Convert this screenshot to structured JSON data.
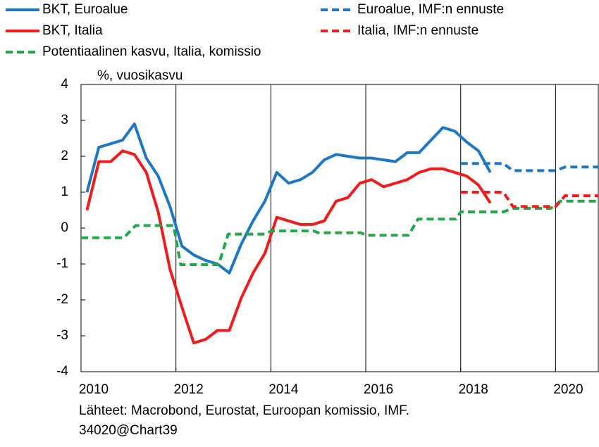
{
  "chart_data": {
    "type": "line",
    "y_label": "%, vuosikasvu",
    "footer": [
      "Lähteet: Macrobond, Eurostat, Euroopan komissio, IMF.",
      "34020@Chart39"
    ],
    "xlim": [
      2010,
      2020.9
    ],
    "xticks": [
      2010,
      2012,
      2014,
      2016,
      2018,
      2020
    ],
    "ylim": [
      -4,
      4
    ],
    "yticks": [
      -4,
      -3,
      -2,
      -1,
      0,
      1,
      2,
      3,
      4
    ],
    "xgrid": [
      2012,
      2014,
      2016,
      2018,
      2020
    ],
    "series": [
      {
        "name": "BKT, Euroalue",
        "color": "#1f77c4",
        "dash": false,
        "x": [
          2010.125,
          2010.375,
          2010.625,
          2010.875,
          2011.125,
          2011.375,
          2011.625,
          2011.875,
          2012.125,
          2012.375,
          2012.625,
          2012.875,
          2013.125,
          2013.375,
          2013.625,
          2013.875,
          2014.125,
          2014.375,
          2014.625,
          2014.875,
          2015.125,
          2015.375,
          2015.625,
          2015.875,
          2016.125,
          2016.375,
          2016.625,
          2016.875,
          2017.125,
          2017.375,
          2017.625,
          2017.875,
          2018.125,
          2018.375,
          2018.625
        ],
        "values": [
          1.0,
          2.25,
          2.35,
          2.45,
          2.9,
          1.95,
          1.45,
          0.6,
          -0.5,
          -0.75,
          -0.9,
          -1.0,
          -1.25,
          -0.45,
          0.2,
          0.75,
          1.55,
          1.25,
          1.35,
          1.55,
          1.9,
          2.05,
          2.0,
          1.95,
          1.95,
          1.9,
          1.85,
          2.1,
          2.1,
          2.45,
          2.8,
          2.7,
          2.4,
          2.15,
          1.55
        ]
      },
      {
        "name": "BKT, Italia",
        "color": "#ee1c1c",
        "dash": false,
        "x": [
          2010.125,
          2010.375,
          2010.625,
          2010.875,
          2011.125,
          2011.375,
          2011.625,
          2011.875,
          2012.125,
          2012.375,
          2012.625,
          2012.875,
          2013.125,
          2013.375,
          2013.625,
          2013.875,
          2014.125,
          2014.375,
          2014.625,
          2014.875,
          2015.125,
          2015.375,
          2015.625,
          2015.875,
          2016.125,
          2016.375,
          2016.625,
          2016.875,
          2017.125,
          2017.375,
          2017.625,
          2017.875,
          2018.125,
          2018.375,
          2018.625
        ],
        "values": [
          0.5,
          1.85,
          1.85,
          2.15,
          2.05,
          1.55,
          0.45,
          -1.15,
          -2.2,
          -3.2,
          -3.1,
          -2.85,
          -2.85,
          -1.95,
          -1.25,
          -0.7,
          0.3,
          0.2,
          0.1,
          0.1,
          0.2,
          0.75,
          0.85,
          1.25,
          1.35,
          1.15,
          1.25,
          1.35,
          1.55,
          1.65,
          1.65,
          1.55,
          1.45,
          1.2,
          0.7
        ]
      },
      {
        "name": "Potentiaalinen kasvu, Italia, komissio",
        "color": "#22a84a",
        "dash": true,
        "x": [
          2010,
          2010.9,
          2011.15,
          2011.95,
          2012.1,
          2012.9,
          2013.1,
          2013.9,
          2014,
          2014.9,
          2015,
          2015.9,
          2016,
          2016.9,
          2017.1,
          2017.9,
          2018,
          2018.9,
          2019.1,
          2019.9,
          2020.1,
          2020.9
        ],
        "values": [
          -0.27,
          -0.27,
          0.07,
          0.07,
          -1.02,
          -1.02,
          -0.17,
          -0.17,
          -0.08,
          -0.08,
          -0.13,
          -0.13,
          -0.2,
          -0.2,
          0.25,
          0.25,
          0.45,
          0.45,
          0.55,
          0.55,
          0.75,
          0.75
        ]
      },
      {
        "name": "Euroalue, IMF:n ennuste",
        "color": "#1f77c4",
        "dash": true,
        "x": [
          2018,
          2018.9,
          2019.1,
          2020,
          2020.2,
          2020.9
        ],
        "values": [
          1.8,
          1.8,
          1.6,
          1.6,
          1.7,
          1.7
        ]
      },
      {
        "name": "Italia, IMF:n ennuste",
        "color": "#ee1c1c",
        "dash": true,
        "x": [
          2018,
          2018.9,
          2019.1,
          2020,
          2020.2,
          2020.9
        ],
        "values": [
          1.0,
          1.0,
          0.6,
          0.6,
          0.9,
          0.9
        ]
      }
    ]
  }
}
